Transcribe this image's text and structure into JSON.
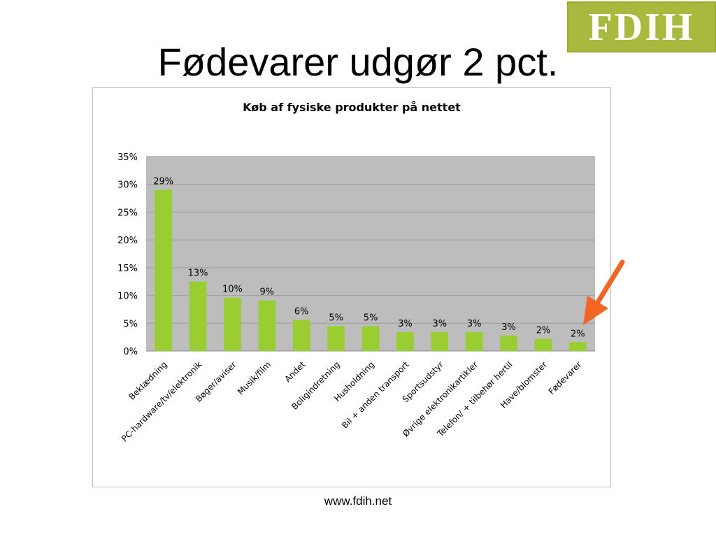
{
  "slide": {
    "title": "Fødevarer udgør 2 pct.",
    "logo_text": "FDIH",
    "footer_url": "www.fdih.net"
  },
  "colors": {
    "bar": "#9acd32",
    "plot_bg": "#bdbdbd",
    "gridline": "#a3a3a3",
    "logo_bg": "#a9b93d",
    "arrow": "#f26522"
  },
  "chart_data": {
    "type": "bar",
    "title": "Køb af fysiske produkter på nettet",
    "categories": [
      "Beklædning",
      "PC-hardware/tv/elektronik",
      "Bøger/aviser",
      "Musik/film",
      "Andet",
      "Boligindretning",
      "Husholdning",
      "Bil + anden transport",
      "Sportsudstyr",
      "Øvrige elektronikartikler",
      "Telefon/ + tilbehør hertil",
      "Have/blomster",
      "Fødevarer"
    ],
    "values": [
      29,
      12.5,
      9.6,
      9.1,
      5.6,
      4.5,
      4.5,
      3.4,
      3.4,
      3.4,
      2.8,
      2.2,
      1.6
    ],
    "data_labels": [
      "29%",
      "13%",
      "10%",
      "9%",
      "6%",
      "5%",
      "5%",
      "3%",
      "3%",
      "3%",
      "3%",
      "2%",
      "2%"
    ],
    "ylim": [
      0,
      35
    ],
    "yticks": [
      "0%",
      "5%",
      "10%",
      "15%",
      "20%",
      "25%",
      "30%",
      "35%"
    ],
    "ytick_values": [
      0,
      5,
      10,
      15,
      20,
      25,
      30,
      35
    ],
    "grid": true,
    "legend": "none"
  }
}
